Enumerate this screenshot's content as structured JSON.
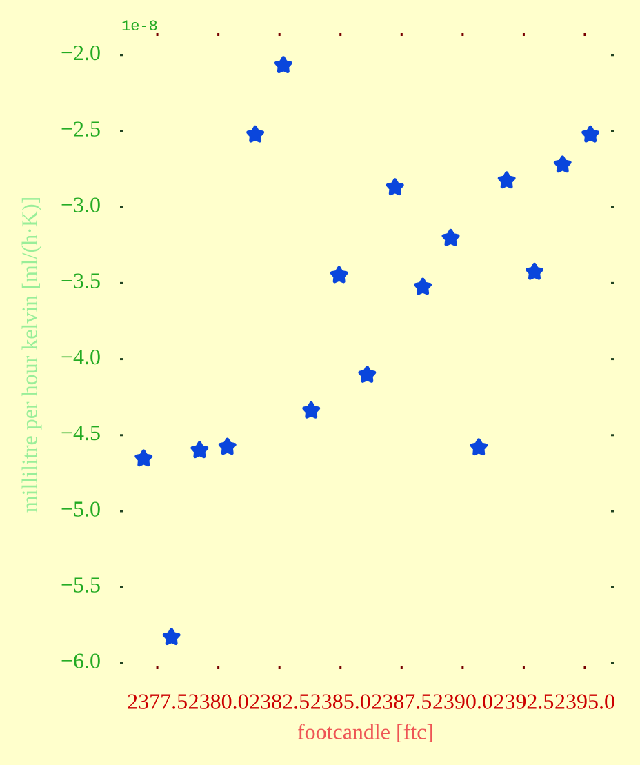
{
  "chart_data": {
    "type": "scatter",
    "x_label": "footcandle [ftc]",
    "y_label": "millilitre per hour kelvin [ml/(h·K)]",
    "y_offset_label": "1e-8",
    "x": [
      2376.94,
      2378.08,
      2379.23,
      2380.37,
      2381.51,
      2382.66,
      2383.8,
      2384.94,
      2386.09,
      2387.23,
      2388.37,
      2389.51,
      2390.66,
      2391.8,
      2392.94,
      2394.09,
      2395.23
    ],
    "series": [
      {
        "color": "#0a46dc",
        "values": [
          -4.655,
          -5.829,
          -4.6,
          -4.578,
          -2.524,
          -2.068,
          -4.339,
          -3.449,
          -4.104,
          -2.871,
          -3.526,
          -3.205,
          -4.582,
          -2.826,
          -3.427,
          -2.722,
          -2.524
        ]
      }
    ],
    "xlim": [
      2376.03,
      2396.13
    ],
    "ylim": [
      -6.03,
      -1.865
    ],
    "xticks": [
      2377.5,
      {
        "value": 2380,
        "label": "2380.0"
      },
      2382.5,
      {
        "value": 2385,
        "label": "2385.0"
      },
      2387.5,
      {
        "value": 2390,
        "label": "2390.0"
      },
      2392.5,
      {
        "value": 2395,
        "label": "2395.0"
      }
    ],
    "yticks": [
      {
        "value": -6,
        "label": "−6.0"
      },
      {
        "value": -5.5,
        "label": "−5.5"
      },
      {
        "value": -5,
        "label": "−5.0"
      },
      {
        "value": -4.5,
        "label": "−4.5"
      },
      {
        "value": -4,
        "label": "−4.0"
      },
      {
        "value": -3.5,
        "label": "−3.5"
      },
      {
        "value": -3,
        "label": "−3.0"
      },
      {
        "value": -2.5,
        "label": "−2.5"
      },
      {
        "value": -2,
        "label": "−2.0"
      }
    ],
    "grid": false
  }
}
